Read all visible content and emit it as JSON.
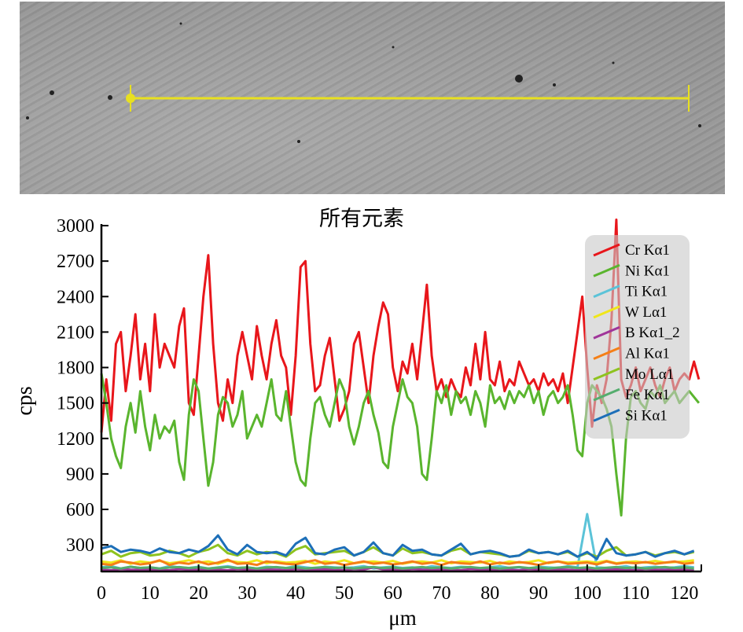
{
  "image": {
    "scan_line_color": "#e8e020"
  },
  "chart_data": {
    "type": "line",
    "title": "所有元素",
    "xlabel": "μm",
    "ylabel": "cps",
    "xlim": [
      0,
      123.5
    ],
    "ylim": [
      75,
      3080
    ],
    "xticks": [
      0,
      10,
      20,
      30,
      40,
      50,
      60,
      70,
      80,
      90,
      100,
      110,
      120
    ],
    "yticks": [
      300,
      600,
      900,
      1200,
      1500,
      1800,
      2100,
      2400,
      2700,
      3000
    ],
    "grid": false,
    "legend_position": "top-right",
    "series": [
      {
        "name": "Cr Kα1",
        "color": "#e8161b",
        "step": 1,
        "values": [
          1250,
          1700,
          1350,
          2000,
          2100,
          1600,
          1900,
          2250,
          1700,
          2000,
          1600,
          2250,
          1800,
          2000,
          1900,
          1800,
          2150,
          2300,
          1500,
          1400,
          1900,
          2400,
          2750,
          2000,
          1500,
          1350,
          1700,
          1500,
          1900,
          2100,
          1900,
          1700,
          2150,
          1900,
          1700,
          2000,
          2200,
          1900,
          1800,
          1400,
          1900,
          2650,
          2700,
          2000,
          1600,
          1650,
          1900,
          2050,
          1700,
          1350,
          1450,
          1600,
          2000,
          2100,
          1800,
          1500,
          1900,
          2150,
          2350,
          2250,
          1800,
          1600,
          1850,
          1750,
          2000,
          1700,
          2100,
          2500,
          1900,
          1600,
          1700,
          1550,
          1700,
          1600,
          1550,
          1800,
          1650,
          2000,
          1700,
          2100,
          1700,
          1650,
          1850,
          1600,
          1700,
          1650,
          1850,
          1750,
          1650,
          1700,
          1600,
          1750,
          1650,
          1700,
          1600,
          1750,
          1500,
          1800,
          2100,
          2400,
          1800,
          1300,
          1650,
          1500,
          1700,
          2200,
          3050,
          1700,
          1550,
          1650,
          1800,
          1600,
          1700,
          1800,
          1650,
          1550,
          1700,
          1800,
          1600,
          1700,
          1750,
          1700,
          1850,
          1700
        ]
      },
      {
        "name": "Ni Kα1",
        "color": "#5ab52e",
        "step": 1,
        "values": [
          1750,
          1500,
          1200,
          1050,
          950,
          1300,
          1500,
          1250,
          1600,
          1300,
          1100,
          1400,
          1200,
          1300,
          1250,
          1350,
          1000,
          850,
          1400,
          1700,
          1600,
          1200,
          800,
          1000,
          1400,
          1550,
          1500,
          1300,
          1400,
          1600,
          1200,
          1300,
          1400,
          1300,
          1500,
          1700,
          1400,
          1350,
          1600,
          1300,
          1000,
          850,
          800,
          1200,
          1500,
          1550,
          1400,
          1300,
          1500,
          1700,
          1600,
          1300,
          1150,
          1300,
          1500,
          1600,
          1400,
          1250,
          1000,
          950,
          1300,
          1500,
          1700,
          1550,
          1500,
          1300,
          900,
          850,
          1200,
          1600,
          1500,
          1650,
          1400,
          1600,
          1500,
          1550,
          1400,
          1600,
          1500,
          1300,
          1650,
          1500,
          1550,
          1450,
          1600,
          1500,
          1600,
          1550,
          1650,
          1500,
          1600,
          1400,
          1550,
          1600,
          1500,
          1550,
          1650,
          1400,
          1100,
          1050,
          1500,
          1650,
          1600,
          1550,
          1450,
          1300,
          900,
          550,
          1200,
          1550,
          1600,
          1500,
          1450,
          1600,
          1550,
          1650,
          1500,
          1550,
          1600,
          1500,
          1550,
          1600,
          1550,
          1500
        ]
      },
      {
        "name": "Ti Kα1",
        "color": "#5bc3d8",
        "step": 2,
        "values": [
          110,
          120,
          100,
          115,
          105,
          110,
          100,
          120,
          110,
          105,
          115,
          100,
          110,
          120,
          105,
          110,
          100,
          115,
          110,
          105,
          120,
          110,
          100,
          115,
          110,
          105,
          110,
          120,
          100,
          110,
          115,
          105,
          110,
          100,
          120,
          110,
          105,
          115,
          110,
          100,
          110,
          120,
          105,
          110,
          100,
          115,
          110,
          105,
          120,
          110,
          560,
          110,
          105,
          110,
          120,
          100,
          110,
          115,
          105,
          110,
          120,
          110
        ]
      },
      {
        "name": "W Lα1",
        "color": "#f0e619",
        "step": 2,
        "values": [
          160,
          150,
          170,
          140,
          160,
          150,
          165,
          145,
          155,
          170,
          150,
          160,
          140,
          165,
          155,
          150,
          170,
          145,
          160,
          150,
          155,
          165,
          140,
          160,
          150,
          170,
          145,
          155,
          160,
          150,
          165,
          140,
          155,
          160,
          150,
          170,
          145,
          160,
          155,
          150,
          165,
          140,
          160,
          150,
          155,
          170,
          145,
          160,
          150,
          155,
          160,
          150,
          165,
          145,
          155,
          160,
          150,
          165,
          150,
          155,
          160,
          170
        ]
      },
      {
        "name": "B Kα1_2",
        "color": "#a0359a",
        "step": 2,
        "values": [
          90,
          85,
          95,
          90,
          88,
          92,
          90,
          85,
          95,
          90,
          88,
          92,
          90,
          85,
          95,
          90,
          88,
          92,
          90,
          85,
          95,
          90,
          88,
          92,
          90,
          85,
          95,
          90,
          110,
          92,
          90,
          85,
          95,
          90,
          88,
          92,
          90,
          85,
          95,
          90,
          88,
          92,
          90,
          85,
          95,
          90,
          88,
          92,
          90,
          85,
          95,
          90,
          88,
          92,
          90,
          85,
          95,
          90,
          88,
          92,
          90,
          85
        ]
      },
      {
        "name": "Al Kα1",
        "color": "#f57f17",
        "step": 2,
        "values": [
          140,
          130,
          160,
          150,
          135,
          145,
          170,
          130,
          150,
          140,
          160,
          135,
          150,
          175,
          140,
          145,
          130,
          160,
          150,
          140,
          135,
          155,
          170,
          140,
          150,
          130,
          145,
          160,
          140,
          150,
          135,
          145,
          160,
          140,
          150,
          130,
          155,
          145,
          140,
          160,
          135,
          150,
          140,
          155,
          145,
          130,
          150,
          160,
          140,
          145,
          150,
          135,
          160,
          140,
          150,
          145,
          155,
          140,
          150,
          160,
          140,
          150
        ]
      },
      {
        "name": "Mo Lα1",
        "color": "#8ec31f",
        "step": 2,
        "values": [
          220,
          250,
          200,
          230,
          240,
          210,
          220,
          250,
          230,
          200,
          240,
          260,
          300,
          230,
          210,
          250,
          220,
          240,
          230,
          200,
          260,
          290,
          220,
          230,
          240,
          250,
          210,
          240,
          280,
          230,
          210,
          270,
          230,
          240,
          220,
          210,
          250,
          270,
          220,
          240,
          230,
          220,
          200,
          210,
          250,
          230,
          240,
          220,
          240,
          200,
          230,
          200,
          250,
          280,
          210,
          220,
          240,
          210,
          230,
          240,
          220,
          240
        ]
      },
      {
        "name": "Fe Kα1",
        "color": "#55ad6e",
        "step": 2,
        "values": [
          105,
          110,
          100,
          115,
          105,
          110,
          100,
          108,
          112,
          104,
          110,
          100,
          106,
          112,
          104,
          110,
          100,
          108,
          112,
          104,
          110,
          100,
          106,
          112,
          104,
          110,
          100,
          108,
          112,
          104,
          110,
          100,
          106,
          112,
          104,
          110,
          100,
          108,
          112,
          104,
          110,
          100,
          106,
          112,
          104,
          110,
          100,
          108,
          112,
          104,
          110,
          100,
          106,
          112,
          104,
          110,
          100,
          108,
          112,
          104,
          110,
          100
        ]
      },
      {
        "name": "Si Kα1",
        "color": "#1d6fb8",
        "step": 2,
        "values": [
          270,
          290,
          240,
          260,
          250,
          230,
          270,
          240,
          230,
          260,
          240,
          290,
          380,
          260,
          220,
          300,
          240,
          230,
          240,
          210,
          310,
          360,
          230,
          220,
          260,
          280,
          210,
          240,
          320,
          230,
          210,
          300,
          250,
          260,
          220,
          210,
          260,
          310,
          220,
          240,
          250,
          230,
          200,
          210,
          260,
          230,
          240,
          220,
          250,
          200,
          240,
          180,
          350,
          230,
          210,
          220,
          240,
          200,
          230,
          250,
          220,
          250
        ]
      }
    ]
  }
}
